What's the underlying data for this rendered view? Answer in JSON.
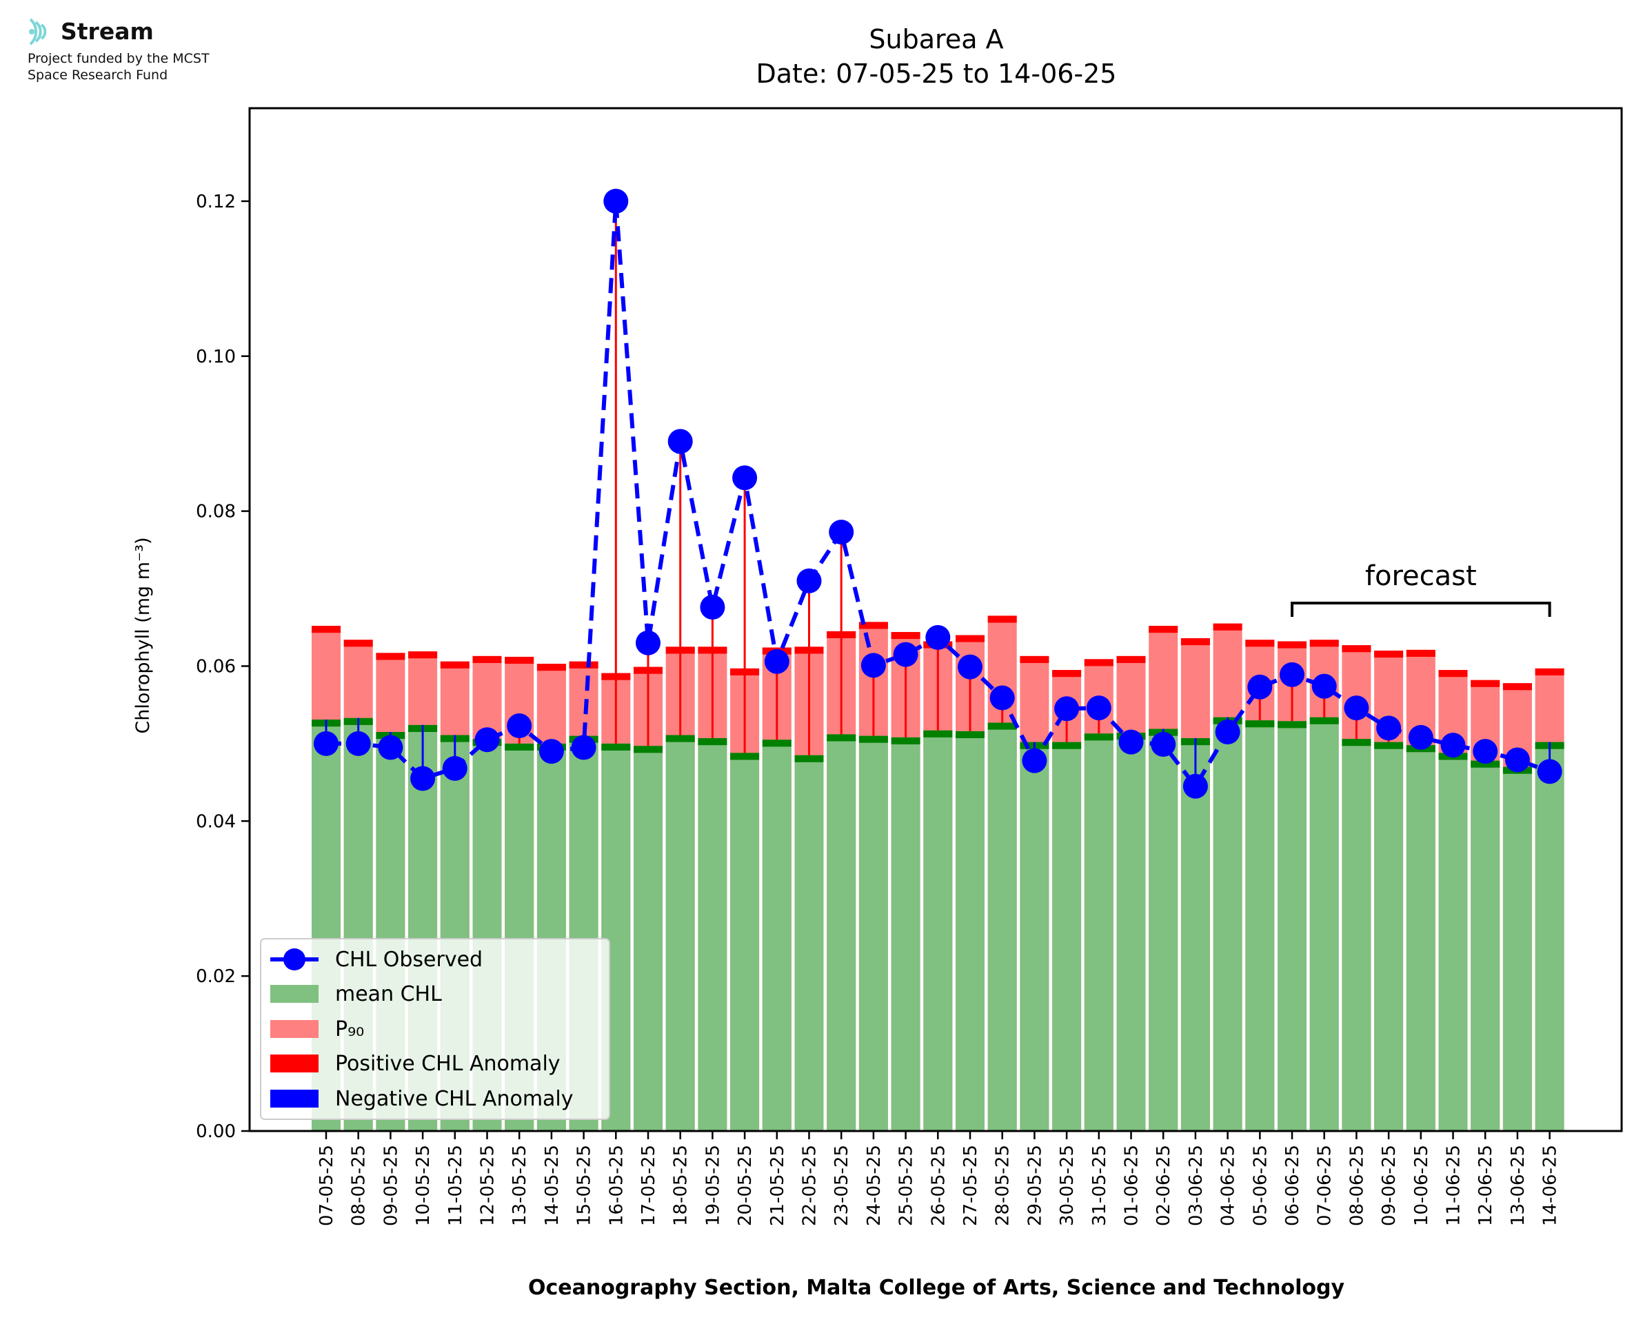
{
  "logo": {
    "name": "Stream",
    "line1": "Project funded by the MCST",
    "line2": "Space Research Fund",
    "icon": "stream-waves-icon",
    "icon_color": "#7fd6d6"
  },
  "chart_data": {
    "type": "bar",
    "title": "Subarea A",
    "subtitle": "Date: 07-05-25 to 14-06-25",
    "ylabel": "Chlorophyll (mg m⁻³)",
    "xlabel": "Oceanography Section, Malta College of Arts, Science and Technology",
    "ylim": [
      0,
      0.132
    ],
    "yticks": [
      "0.00",
      "0.02",
      "0.04",
      "0.06",
      "0.08",
      "0.10",
      "0.12"
    ],
    "ytick_values": [
      0,
      0.02,
      0.04,
      0.06,
      0.08,
      0.1,
      0.12
    ],
    "grid": false,
    "legend_position": "lower-left",
    "categories": [
      "07-05-25",
      "08-05-25",
      "09-05-25",
      "10-05-25",
      "11-05-25",
      "12-05-25",
      "13-05-25",
      "14-05-25",
      "15-05-25",
      "16-05-25",
      "17-05-25",
      "18-05-25",
      "19-05-25",
      "20-05-25",
      "21-05-25",
      "22-05-25",
      "23-05-25",
      "24-05-25",
      "25-05-25",
      "26-05-25",
      "27-05-25",
      "28-05-25",
      "29-05-25",
      "30-05-25",
      "31-05-25",
      "01-06-25",
      "02-06-25",
      "03-06-25",
      "04-06-25",
      "05-06-25",
      "06-06-25",
      "07-06-25",
      "08-06-25",
      "09-06-25",
      "10-06-25",
      "11-06-25",
      "12-06-25",
      "13-06-25",
      "14-06-25"
    ],
    "series": [
      {
        "name": "CHL Observed",
        "color": "#0000ff",
        "values": [
          0.05,
          0.05,
          0.0495,
          0.0455,
          0.0468,
          0.0505,
          0.0523,
          0.049,
          0.0495,
          0.12,
          0.063,
          0.089,
          0.0676,
          0.0843,
          0.0606,
          0.071,
          0.0773,
          0.0601,
          0.0615,
          0.0637,
          0.0599,
          0.0559,
          0.0478,
          0.0545,
          0.0546,
          0.0502,
          0.0499,
          0.0445,
          0.0515,
          0.0573,
          0.0589,
          0.0574,
          0.0546,
          0.052,
          0.0508,
          0.0498,
          0.049,
          0.0479,
          0.0464
        ]
      },
      {
        "name": "mean CHL",
        "color": "#80c080",
        "values": [
          0.0531,
          0.0533,
          0.0515,
          0.0524,
          0.0511,
          0.0506,
          0.05,
          0.05,
          0.051,
          0.05,
          0.0497,
          0.0511,
          0.0507,
          0.0488,
          0.0505,
          0.0485,
          0.0512,
          0.051,
          0.0508,
          0.0517,
          0.0516,
          0.0527,
          0.0502,
          0.0502,
          0.0513,
          0.0514,
          0.0519,
          0.0507,
          0.0534,
          0.053,
          0.0529,
          0.0534,
          0.0506,
          0.0502,
          0.0498,
          0.0488,
          0.0478,
          0.047,
          0.0502
        ]
      },
      {
        "name": "P₉₀",
        "color": "#ff8080",
        "values": [
          0.0652,
          0.0634,
          0.0617,
          0.0619,
          0.0606,
          0.0613,
          0.0612,
          0.0603,
          0.0606,
          0.0591,
          0.0599,
          0.0625,
          0.0625,
          0.0597,
          0.0624,
          0.0625,
          0.0645,
          0.0657,
          0.0644,
          0.0632,
          0.064,
          0.0665,
          0.0613,
          0.0595,
          0.0609,
          0.0613,
          0.0652,
          0.0636,
          0.0655,
          0.0634,
          0.0632,
          0.0634,
          0.0627,
          0.062,
          0.0621,
          0.0595,
          0.0582,
          0.0578,
          0.0597
        ]
      },
      {
        "name": "Positive CHL Anomaly",
        "color": "#ff0000"
      },
      {
        "name": "Negative CHL Anomaly",
        "color": "#0000ff"
      }
    ],
    "annotation": {
      "text": "forecast",
      "from": "06-06-25",
      "to": "14-06-25"
    }
  }
}
